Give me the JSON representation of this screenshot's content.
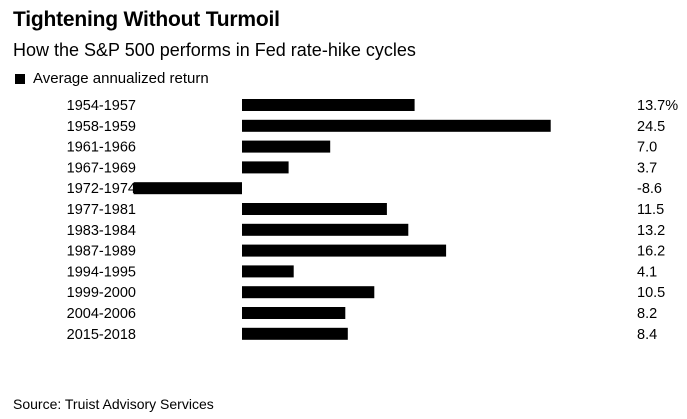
{
  "header": {
    "title": "Tightening Without Turmoil",
    "subtitle": "How the S&P 500 performs in Fed rate-hike cycles"
  },
  "legend": {
    "label": "Average annualized return"
  },
  "footer": {
    "source": "Source: Truist Advisory Services"
  },
  "colors": {
    "bar": "#000000",
    "text": "#000000",
    "background": "#ffffff"
  },
  "chart_data": {
    "type": "bar",
    "orientation": "horizontal",
    "title": "Tightening Without Turmoil",
    "subtitle": "How the S&P 500 performs in Fed rate-hike cycles",
    "xlabel": "",
    "ylabel": "",
    "grid": false,
    "legend_position": "top-left",
    "categories": [
      "1954-1957",
      "1958-1959",
      "1961-1966",
      "1967-1969",
      "1972-1974",
      "1977-1981",
      "1983-1984",
      "1987-1989",
      "1994-1995",
      "1999-2000",
      "2004-2006",
      "2015-2018"
    ],
    "series": [
      {
        "name": "Average annualized return",
        "values": [
          13.7,
          24.5,
          7.0,
          3.7,
          -8.6,
          11.5,
          13.2,
          16.2,
          4.1,
          10.5,
          8.2,
          8.4
        ]
      }
    ],
    "value_labels": [
      "13.7%",
      "24.5",
      "7.0",
      "3.7",
      "-8.6",
      "11.5",
      "13.2",
      "16.2",
      "4.1",
      "10.5",
      "8.2",
      "8.4"
    ],
    "xlim": [
      -8.6,
      24.5
    ]
  }
}
